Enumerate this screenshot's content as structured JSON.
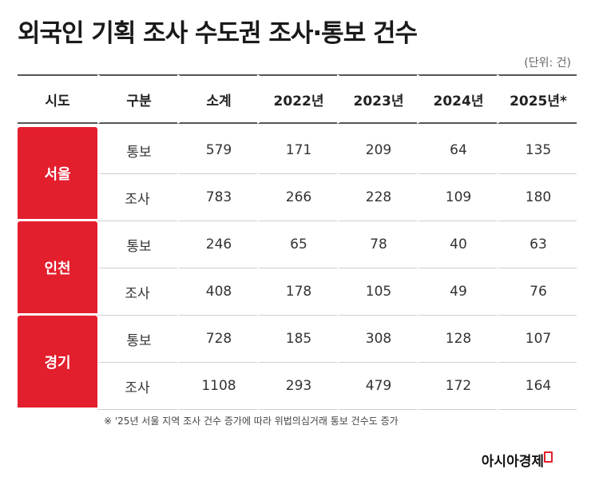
{
  "title": "외국인 기획 조사 수도권 조사·통보 건수",
  "unit": "(단위: 건)",
  "table": {
    "headers": [
      "시도",
      "구분",
      "소계",
      "2022년",
      "2023년",
      "2024년",
      "2025년*"
    ],
    "regions": [
      {
        "name": "서울",
        "rows": [
          {
            "type": "통보",
            "values": [
              "579",
              "171",
              "209",
              "64",
              "135"
            ]
          },
          {
            "type": "조사",
            "values": [
              "783",
              "266",
              "228",
              "109",
              "180"
            ]
          }
        ]
      },
      {
        "name": "인천",
        "rows": [
          {
            "type": "통보",
            "values": [
              "246",
              "65",
              "78",
              "40",
              "63"
            ]
          },
          {
            "type": "조사",
            "values": [
              "408",
              "178",
              "105",
              "49",
              "76"
            ]
          }
        ]
      },
      {
        "name": "경기",
        "rows": [
          {
            "type": "통보",
            "values": [
              "728",
              "185",
              "308",
              "128",
              "107"
            ]
          },
          {
            "type": "조사",
            "values": [
              "1108",
              "293",
              "479",
              "172",
              "164"
            ]
          }
        ]
      }
    ]
  },
  "note": "※ '25년 서울 지역 조사 건수 증가에 따라 위법의심거래 통보 건수도 증가",
  "brand": "아시아경제",
  "colors": {
    "accent": "#e31e2d"
  }
}
